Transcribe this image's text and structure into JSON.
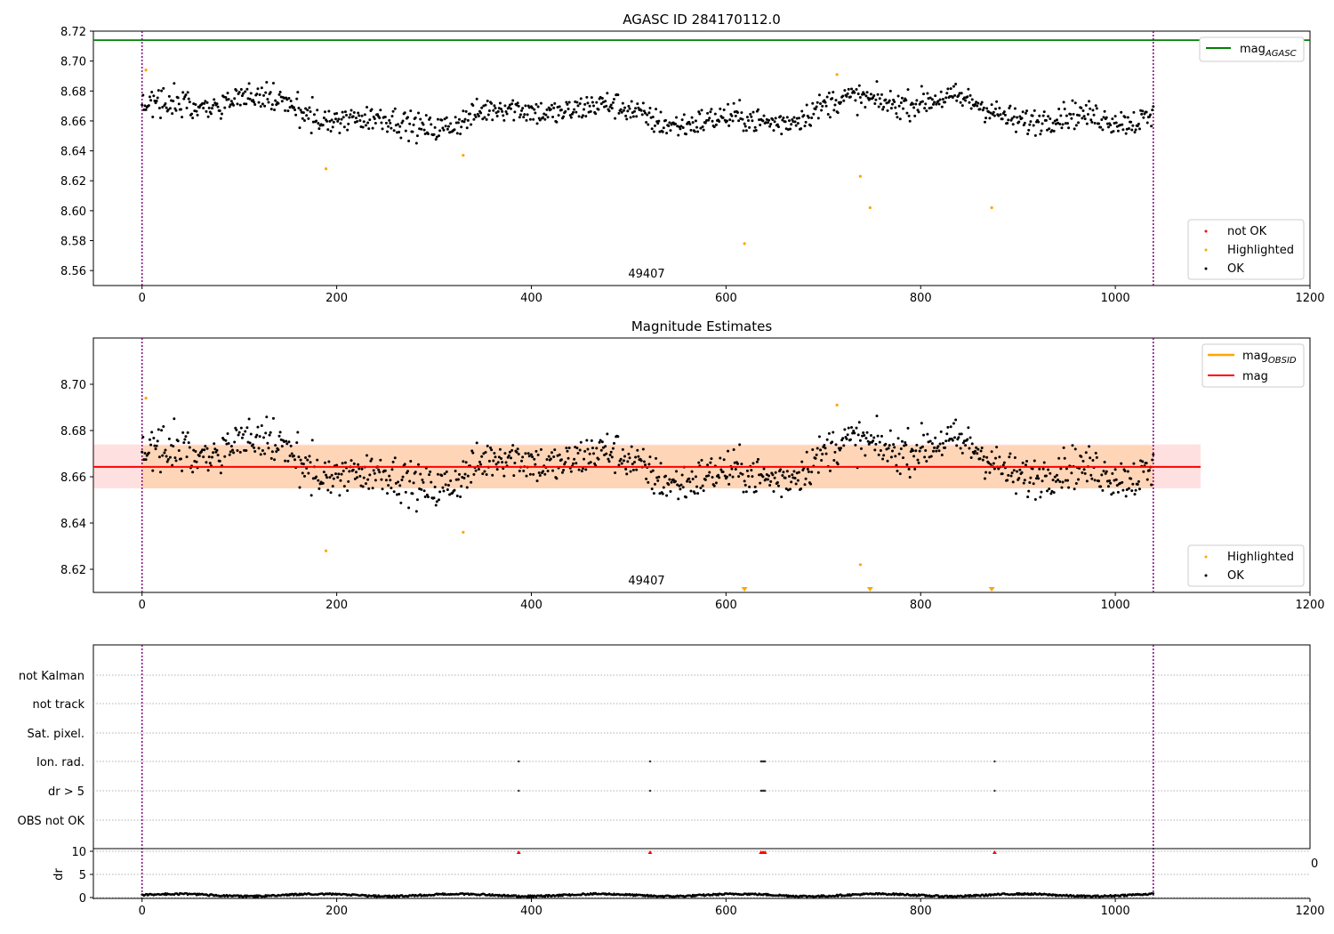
{
  "chart_data": [
    {
      "type": "scatter",
      "title": "AGASC ID 284170112.0",
      "xlim": [
        -50,
        1200
      ],
      "ylim": [
        8.55,
        8.72
      ],
      "xticks": [
        "0",
        "200",
        "400",
        "600",
        "800",
        "1000",
        "1200"
      ],
      "yticks": [
        "8.56",
        "8.58",
        "8.60",
        "8.62",
        "8.64",
        "8.66",
        "8.68",
        "8.70",
        "8.72"
      ],
      "obsid_label": "49407",
      "obsid_x": 520,
      "vlines_x": [
        0,
        1039
      ],
      "hline": {
        "y": 8.714,
        "color": "#008000"
      },
      "legend_top": [
        {
          "label": "mag",
          "sub": "AGASC",
          "color": "#008000"
        }
      ],
      "legend_bottom": [
        {
          "label": "not OK",
          "color": "#ff0000"
        },
        {
          "label": "Highlighted",
          "color": "#ffa500"
        },
        {
          "label": "OK",
          "color": "#000000"
        }
      ],
      "highlighted": [
        [
          4,
          8.694
        ],
        [
          189,
          8.628
        ],
        [
          330,
          8.637
        ],
        [
          619,
          8.578
        ],
        [
          714,
          8.691
        ],
        [
          738,
          8.623
        ],
        [
          748,
          8.602
        ],
        [
          873,
          8.602
        ]
      ]
    },
    {
      "type": "scatter",
      "title": "Magnitude Estimates",
      "xlim": [
        -50,
        1200
      ],
      "ylim": [
        8.61,
        8.72
      ],
      "xticks": [
        "0",
        "200",
        "400",
        "600",
        "800",
        "1000",
        "1200"
      ],
      "yticks": [
        "8.62",
        "8.64",
        "8.66",
        "8.68",
        "8.70"
      ],
      "obsid_label": "49407",
      "obsid_x": 520,
      "vlines_x": [
        0,
        1039
      ],
      "mag": 8.6643,
      "band_red": [
        8.655,
        8.674
      ],
      "band_orange": [
        8.655,
        8.6735
      ],
      "legend_top": [
        {
          "label": "mag",
          "sub": "OBSID",
          "color": "#ffa500"
        },
        {
          "label": "mag",
          "sub": "",
          "color": "#ff0000"
        }
      ],
      "legend_bottom": [
        {
          "label": "Highlighted",
          "color": "#ffa500"
        },
        {
          "label": "OK",
          "color": "#000000"
        }
      ],
      "highlighted": [
        [
          4,
          8.694
        ],
        [
          189,
          8.628
        ],
        [
          330,
          8.636
        ],
        [
          714,
          8.691
        ],
        [
          738,
          8.622
        ]
      ],
      "offscale_low_x": [
        619,
        748,
        873
      ]
    },
    {
      "type": "scatter",
      "title": "",
      "xlim": [
        -50,
        1200
      ],
      "flags": [
        "not Kalman",
        "not track",
        "Sat. pixel.",
        "Ion. rad.",
        "dr > 5",
        "OBS not OK"
      ],
      "flag_events": {
        "Ion. rad.": [
          387,
          522,
          636,
          637,
          638,
          639,
          640,
          876
        ],
        "dr > 5": [
          387,
          522,
          636,
          637,
          638,
          639,
          640,
          876
        ]
      },
      "dr_label": "dr",
      "dr_yticks": [
        "0",
        "5",
        "10"
      ],
      "dr_ylim": [
        0,
        10
      ],
      "dr_clipped_x": [
        387,
        522,
        636,
        638,
        640,
        876
      ],
      "edge_label": "0",
      "xticks": [
        "0",
        "200",
        "400",
        "600",
        "800",
        "1000",
        "1200"
      ]
    }
  ]
}
